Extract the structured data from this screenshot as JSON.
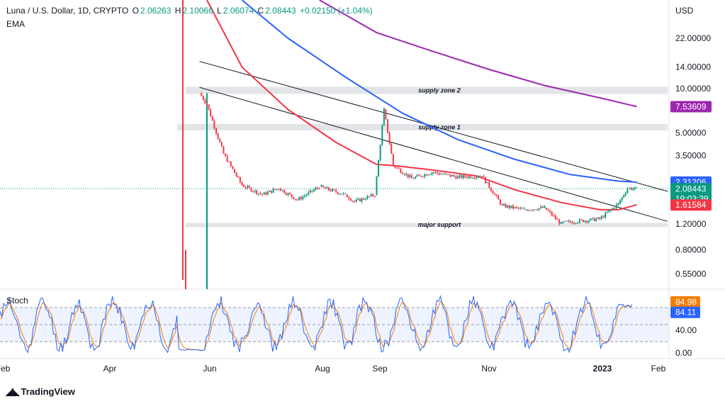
{
  "header": {
    "symbol": "Luna / U.S. Dollar, 1D, CRYPTO",
    "o_label": "O",
    "o_value": "2.06263",
    "h_label": "H",
    "h_value": "2.10066",
    "l_label": "L",
    "l_value": "2.06074",
    "c_label": "C",
    "c_value": "2.08443",
    "change": "+0.02150 (+1.04%)"
  },
  "indicator_label": "EMA",
  "stoch_label": "Stoch",
  "currency": "USD",
  "branding": {
    "text": "TradingView"
  },
  "colors": {
    "up": "#089981",
    "down": "#f23645",
    "ema_short": "#f23645",
    "ema_mid": "#2962ff",
    "ema_long": "#9c27b0",
    "stoch_k": "#2962ff",
    "stoch_d": "#f57c00"
  },
  "chart_data": {
    "type": "candlestick",
    "title": "Luna / U.S. Dollar, 1D, CRYPTO",
    "y_scale": "log",
    "price_ticks": [
      "22.00000",
      "14.00000",
      "10.00000",
      "5.00000",
      "3.50000",
      "1.20000",
      "0.80000",
      "0.55000"
    ],
    "x_ticks": [
      "Feb",
      "Apr",
      "Jun",
      "Aug",
      "Sep",
      "Nov",
      "2023",
      "Feb"
    ],
    "price_badges": [
      {
        "value": "7.53609",
        "color": "#9c27b0"
      },
      {
        "value": "2.31206",
        "color": "#2962ff"
      },
      {
        "value": "2.08443",
        "sub": "19:03:39",
        "color": "#089981"
      },
      {
        "value": "1.61584",
        "color": "#f23645"
      }
    ],
    "zones": [
      {
        "label": "supply zone 2",
        "low": 9.2,
        "high": 10.3
      },
      {
        "label": "supply zone 1",
        "low": 5.2,
        "high": 5.75
      },
      {
        "label": "major support",
        "low": 1.15,
        "high": 1.22
      }
    ],
    "trendlines": [
      {
        "from": [
          "May 28",
          15.3
        ],
        "to": [
          "Jan 27",
          2.0
        ]
      },
      {
        "from": [
          "May 28",
          10.2
        ],
        "to": [
          "Jan 27",
          1.25
        ]
      }
    ],
    "ema_short": [
      [
        "Jun 1",
        40
      ],
      [
        "Jun 20",
        14
      ],
      [
        "Jul 15",
        7.2
      ],
      [
        "Aug 10",
        4.3
      ],
      [
        "Sep 1",
        3.05
      ],
      [
        "Sep 10",
        3.0
      ],
      [
        "Oct 1",
        2.8
      ],
      [
        "Oct 25",
        2.55
      ],
      [
        "Nov 15",
        2.05
      ],
      [
        "Dec 10",
        1.68
      ],
      [
        "Dec 31",
        1.5
      ],
      [
        "Jan 10",
        1.5
      ],
      [
        "Jan 20",
        1.62
      ]
    ],
    "ema_mid": [
      [
        "Jun 20",
        40
      ],
      [
        "Jul 15",
        22
      ],
      [
        "Aug 15",
        12
      ],
      [
        "Sep 15",
        6.8
      ],
      [
        "Oct 15",
        4.5
      ],
      [
        "Nov 15",
        3.3
      ],
      [
        "Dec 15",
        2.6
      ],
      [
        "Jan 10",
        2.35
      ],
      [
        "Jan 20",
        2.31
      ]
    ],
    "ema_long": [
      [
        "Aug 1",
        40
      ],
      [
        "Sep 1",
        24
      ],
      [
        "Oct 1",
        18
      ],
      [
        "Nov 1",
        13.5
      ],
      [
        "Dec 1",
        10.5
      ],
      [
        "Jan 1",
        8.6
      ],
      [
        "Jan 20",
        7.54
      ]
    ],
    "price_path": [
      [
        "May 9",
        60,
        0.3
      ],
      [
        "May 28",
        0.3,
        9.3
      ],
      [
        "Jun 1",
        9.3,
        7.8
      ],
      [
        "Jun 10",
        7.8,
        3.6
      ],
      [
        "Jun 20",
        3.6,
        2.2
      ],
      [
        "Jul 1",
        2.2,
        1.9
      ],
      [
        "Jul 10",
        1.9,
        2.1
      ],
      [
        "Jul 20",
        2.1,
        1.75
      ],
      [
        "Aug 1",
        1.75,
        2.15
      ],
      [
        "Aug 15",
        2.15,
        1.9
      ],
      [
        "Aug 20",
        1.9,
        1.7
      ],
      [
        "Aug 31",
        1.7,
        1.9
      ],
      [
        "Sep 5",
        1.9,
        7.2
      ],
      [
        "Sep 10",
        7.2,
        3.0
      ],
      [
        "Sep 20",
        3.0,
        2.45
      ],
      [
        "Oct 1",
        2.45,
        2.7
      ],
      [
        "Oct 15",
        2.7,
        2.5
      ],
      [
        "Oct 28",
        2.5,
        2.55
      ],
      [
        "Nov 8",
        2.55,
        1.6
      ],
      [
        "Nov 20",
        1.6,
        1.5
      ],
      [
        "Dec 1",
        1.5,
        1.55
      ],
      [
        "Dec 10",
        1.55,
        1.2
      ],
      [
        "Dec 31",
        1.22,
        1.3
      ],
      [
        "Jan 10",
        1.3,
        1.65
      ],
      [
        "Jan 15",
        1.65,
        2.1
      ],
      [
        "Jan 20",
        2.1,
        2.08
      ]
    ],
    "stoch_ticks": [
      "84.98",
      "84.11",
      "40.00",
      "0.00"
    ],
    "stoch_levels": [
      80,
      50,
      20
    ],
    "stoch_last": {
      "k": 84.11,
      "d": 84.98
    }
  }
}
